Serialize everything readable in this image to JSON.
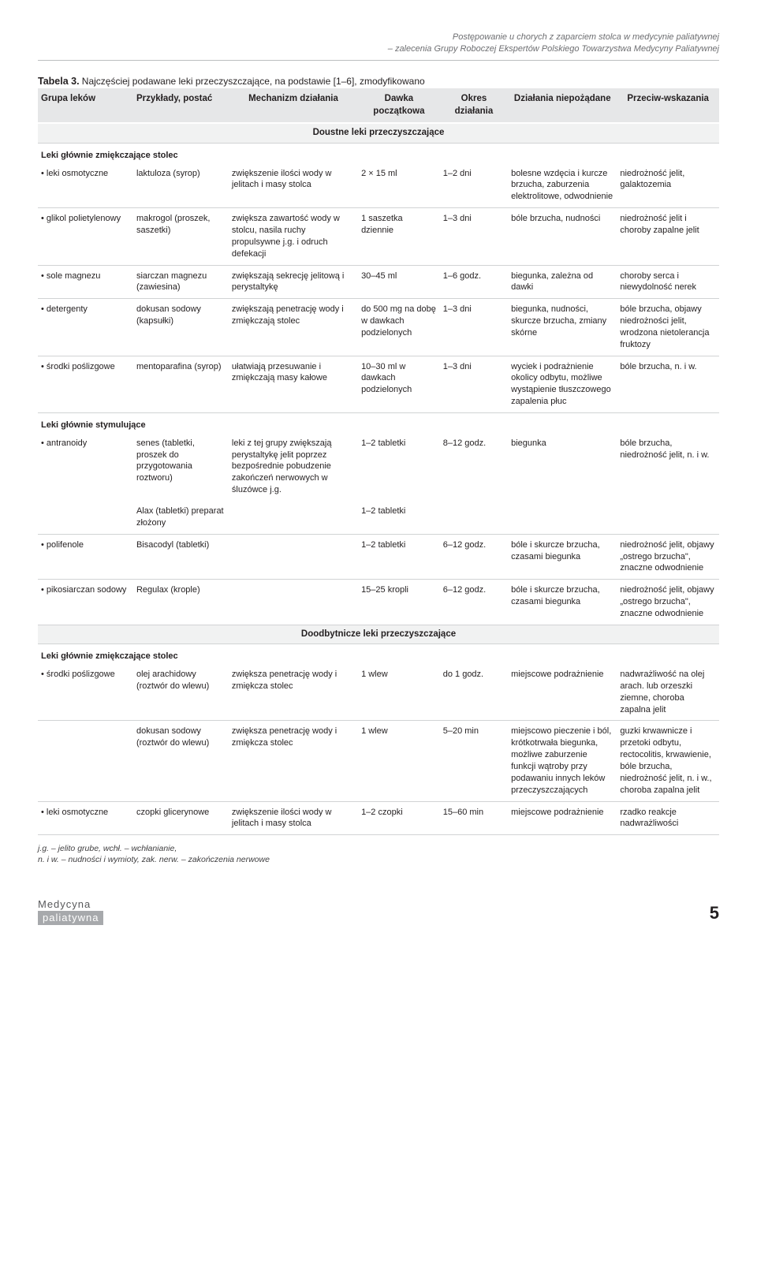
{
  "header": {
    "line1": "Postępowanie u chorych z zaparciem stolca w medycynie paliatywnej",
    "line2": "– zalecenia Grupy Roboczej Ekspertów Polskiego Towarzystwa Medycyny Paliatywnej"
  },
  "table": {
    "title": "Tabela 3.",
    "caption": "Najczęściej podawane leki przeczyszczające, na podstawie [1–6], zmodyfikowano",
    "columns": [
      "Grupa leków",
      "Przykłady, postać",
      "Mechanizm działania",
      "Dawka początkowa",
      "Okres działania",
      "Działania niepożądane",
      "Przeciw-wskazania"
    ],
    "col_widths": [
      "14%",
      "14%",
      "19%",
      "12%",
      "10%",
      "16%",
      "15%"
    ],
    "section1": "Doustne leki przeczyszczające",
    "group1_label": "Leki głównie zmiękczające stolec",
    "group1": [
      {
        "c0": "leki osmotyczne",
        "c1": "laktuloza (syrop)",
        "c2": "zwiększenie ilości wody w jelitach i masy stolca",
        "c3": "2 × 15 ml",
        "c4": "1–2 dni",
        "c5": "bolesne wzdęcia i kurcze brzucha, zaburzenia elektrolitowe, odwodnienie",
        "c6": "niedrożność jelit, galaktozemia"
      },
      {
        "c0": "glikol polietylenowy",
        "c1": "makrogol (proszek, saszetki)",
        "c2": "zwiększa zawartość wody w stolcu, nasila ruchy propulsywne j.g. i odruch defekacji",
        "c3": "1 saszetka dziennie",
        "c4": "1–3 dni",
        "c5": "bóle brzucha, nudności",
        "c6": "niedrożność jelit i choroby zapalne jelit"
      },
      {
        "c0": "sole magnezu",
        "c1": "siarczan magnezu (zawiesina)",
        "c2": "zwiększają sekrecję jelitową i perystaltykę",
        "c3": "30–45 ml",
        "c4": "1–6 godz.",
        "c5": "biegunka, zależna od dawki",
        "c6": "choroby serca i niewydolność nerek"
      },
      {
        "c0": "detergenty",
        "c1": "dokusan sodowy (kapsułki)",
        "c2": "zwiększają penetrację wody i zmiękczają stolec",
        "c3": "do 500 mg na dobę w dawkach podzielonych",
        "c4": "1–3 dni",
        "c5": "biegunka, nudności, skurcze brzucha, zmiany skórne",
        "c6": "bóle brzucha, objawy niedrożności jelit, wrodzona nietolerancja fruktozy"
      },
      {
        "c0": "środki poślizgowe",
        "c1": "mentoparafina (syrop)",
        "c2": "ułatwiają przesuwanie i zmiękczają masy kałowe",
        "c3": "10–30 ml w dawkach podzielonych",
        "c4": "1–3 dni",
        "c5": "wyciek i podrażnienie okolicy odbytu, możliwe wystąpienie tłuszczowego zapalenia płuc",
        "c6": "bóle brzucha, n. i w."
      }
    ],
    "group2_label": "Leki głównie stymulujące",
    "group2": [
      {
        "c0": "antranoidy",
        "c1": "senes (tabletki, proszek do przygotowania roztworu)",
        "c2": "leki z tej grupy zwiększają perystaltykę jelit poprzez bezpośrednie pobudzenie zakończeń nerwowych w śluzówce j.g.",
        "c3": "1–2 tabletki",
        "c4": "8–12 godz.",
        "c5": "biegunka",
        "c6": "bóle brzucha, niedrożność jelit, n. i w."
      },
      {
        "c0": "",
        "c1": "Alax (tabletki) preparat złożony",
        "c2": "",
        "c3": "1–2 tabletki",
        "c4": "",
        "c5": "",
        "c6": ""
      },
      {
        "c0": "polifenole",
        "c1": "Bisacodyl (tabletki)",
        "c2": "",
        "c3": "1–2 tabletki",
        "c4": "6–12 godz.",
        "c5": "bóle i skurcze brzucha, czasami biegunka",
        "c6": "niedrożność jelit, objawy „ostrego brzucha\", znaczne odwodnienie"
      },
      {
        "c0": "pikosiarczan sodowy",
        "c1": "Regulax (krople)",
        "c2": "",
        "c3": "15–25 kropli",
        "c4": "6–12 godz.",
        "c5": "bóle i skurcze brzucha, czasami biegunka",
        "c6": "niedrożność jelit, objawy „ostrego brzucha\", znaczne odwodnienie"
      }
    ],
    "section2": "Doodbytnicze leki przeczyszczające",
    "group3_label": "Leki głównie zmiękczające stolec",
    "group3": [
      {
        "c0": "środki poślizgowe",
        "c1": "olej arachidowy (roztwór do wlewu)",
        "c2": "zwiększa penetrację wody i zmiękcza stolec",
        "c3": "1 wlew",
        "c4": "do 1 godz.",
        "c5": "miejscowe podrażnienie",
        "c6": "nadwrażliwość na olej arach. lub orzeszki ziemne, choroba zapalna jelit"
      },
      {
        "c0": "",
        "c1": "dokusan sodowy (roztwór do wlewu)",
        "c2": "zwiększa penetrację wody i zmiękcza stolec",
        "c3": "1 wlew",
        "c4": "5–20 min",
        "c5": "miejscowo pieczenie i ból, krótkotrwała biegunka, możliwe zaburzenie funkcji wątroby przy podawaniu innych leków przeczyszczających",
        "c6": "guzki krwawnicze i przetoki odbytu, rectocolitis, krwawienie, bóle brzucha, niedrożność jelit, n. i w., choroba zapalna jelit"
      },
      {
        "c0": "leki osmotyczne",
        "c1": "czopki glicerynowe",
        "c2": "zwiększenie ilości wody w jelitach i masy stolca",
        "c3": "1–2 czopki",
        "c4": "15–60 min",
        "c5": "miejscowe podrażnienie",
        "c6": "rzadko reakcje nadwrażliwości"
      }
    ]
  },
  "footnote": {
    "l1": "j.g. – jelito grube, wchł. – wchłanianie,",
    "l2": "n. i w. – nudności i wymioty, zak. nerw. – zakończenia nerwowe"
  },
  "footer": {
    "brand1": "Medycyna",
    "brand2": "paliatywna",
    "page": "5"
  }
}
